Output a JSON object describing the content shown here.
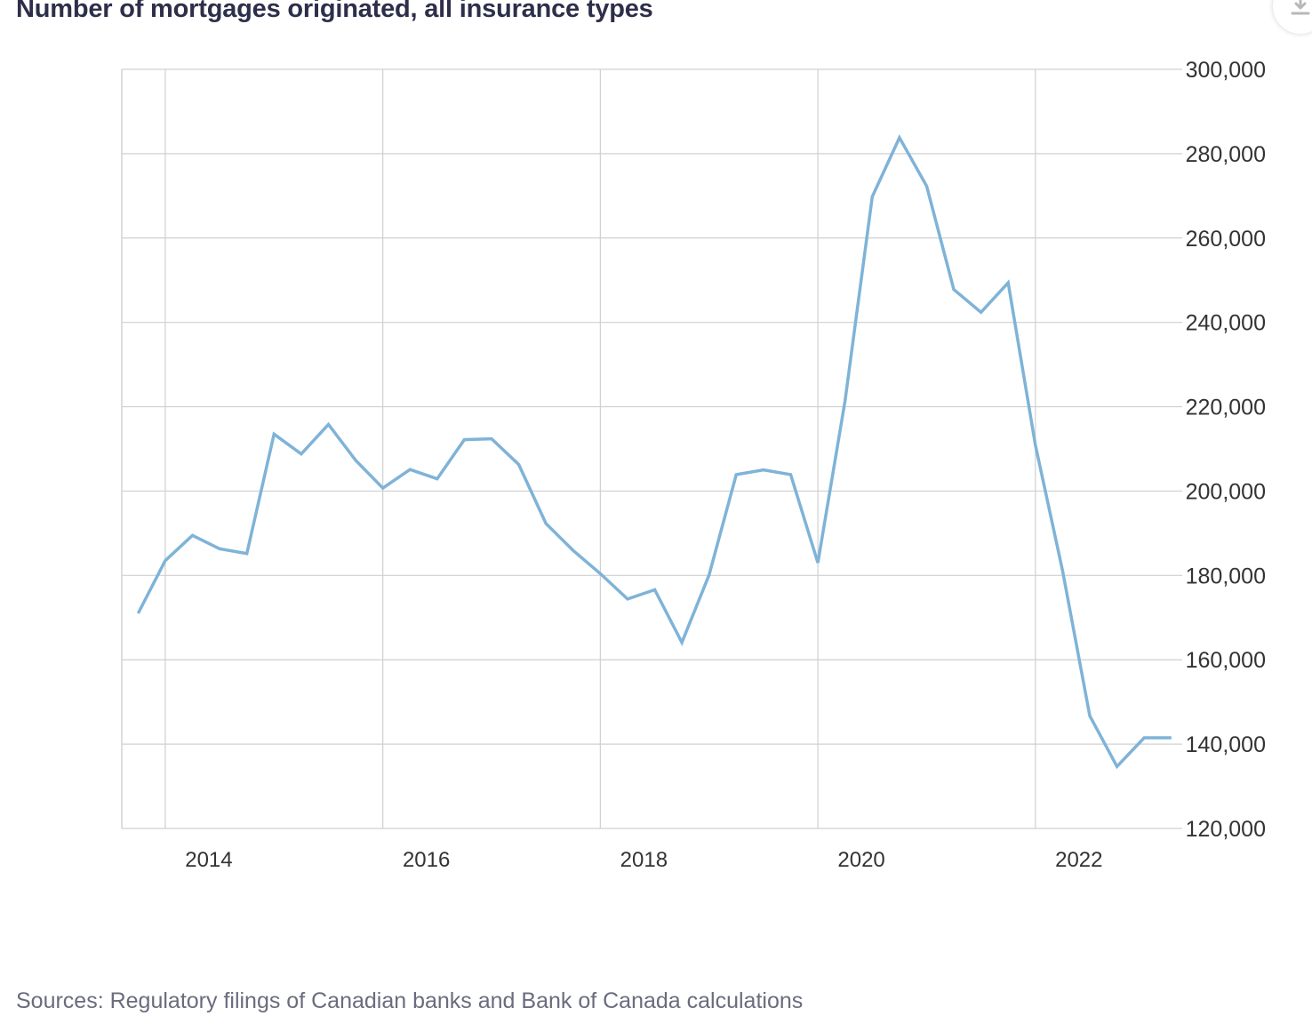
{
  "header": {
    "title": "Number of mortgages originated, all insurance types"
  },
  "footer": {
    "source": "Sources: Regulatory filings of Canadian banks and Bank of Canada calculations"
  },
  "colors": {
    "line": "#7fb3d7",
    "grid": "#d0d0d0",
    "text": "#2d2f4a",
    "muted": "#6a6c7e"
  },
  "icons": {
    "download": "download-icon"
  },
  "chart_data": {
    "type": "line",
    "title": "Number of mortgages originated, all insurance types",
    "xlabel": "",
    "ylabel": "",
    "xlim": [
      2013.6,
      2023.35
    ],
    "ylim": [
      120000,
      300000
    ],
    "x_ticks": [
      2014,
      2016,
      2018,
      2020,
      2022
    ],
    "x_tick_labels": [
      "2014",
      "2016",
      "2018",
      "2020",
      "2022"
    ],
    "y_ticks": [
      120000,
      140000,
      160000,
      180000,
      200000,
      220000,
      240000,
      260000,
      280000,
      300000
    ],
    "y_tick_labels": [
      "120,000",
      "140,000",
      "160,000",
      "180,000",
      "200,000",
      "220,000",
      "240,000",
      "260,000",
      "280,000",
      "300,000"
    ],
    "y_axis_position": "right",
    "grid": true,
    "legend": "none",
    "series": [
      {
        "x": [
          2013.75,
          2014.0,
          2014.25,
          2014.5,
          2014.75,
          2015.0,
          2015.25,
          2015.5,
          2015.75,
          2016.0,
          2016.25,
          2016.5,
          2016.75,
          2017.0,
          2017.25,
          2017.5,
          2017.75,
          2018.0,
          2018.25,
          2018.5,
          2018.75,
          2019.0,
          2019.25,
          2019.5,
          2019.75,
          2020.0,
          2020.25,
          2020.5,
          2020.75,
          2021.0,
          2021.25,
          2021.5,
          2021.75,
          2022.0,
          2022.25,
          2022.5,
          2022.75,
          2023.0,
          2023.25
        ],
        "y": [
          171000,
          183500,
          189500,
          186300,
          185200,
          213500,
          208800,
          215800,
          207300,
          200700,
          205100,
          202900,
          212200,
          212400,
          206300,
          192300,
          185900,
          180400,
          174400,
          176600,
          164100,
          180100,
          203900,
          205000,
          203900,
          183000,
          221400,
          269800,
          283800,
          272300,
          247800,
          242400,
          249400,
          210900,
          181100,
          146700,
          134700,
          141500,
          141500
        ]
      }
    ]
  }
}
